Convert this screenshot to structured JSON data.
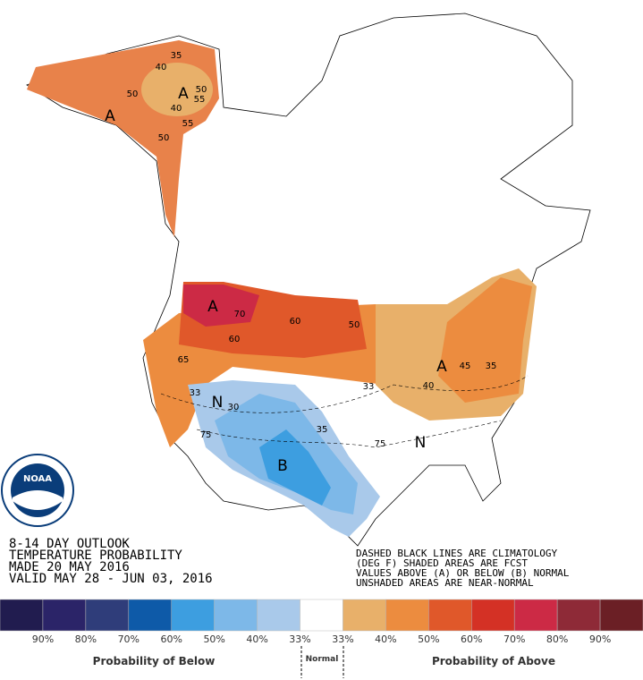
{
  "outlook": {
    "lines": [
      "8-14 DAY OUTLOOK",
      "TEMPERATURE PROBABILITY",
      "MADE  20 MAY 2016",
      "VALID  MAY 28 - JUN 03, 2016"
    ],
    "notes": [
      "DASHED BLACK LINES ARE CLIMATOLOGY",
      "(DEG F) SHADED AREAS ARE FCST",
      "VALUES ABOVE (A) OR BELOW (B) NORMAL",
      "UNSHADED AREAS ARE NEAR-NORMAL"
    ]
  },
  "map_labels": [
    "35",
    "40",
    "50",
    "A",
    "50",
    "55",
    "40",
    "A",
    "55",
    "50",
    "A",
    "70",
    "60",
    "50",
    "60",
    "65",
    "33",
    "N",
    "30",
    "75",
    "35",
    "B",
    "33",
    "75",
    "N",
    "A",
    "40",
    "45",
    "35"
  ],
  "legend": {
    "colors": [
      "#211c4f",
      "#2b2468",
      "#2f3d7a",
      "#0e5aa8",
      "#3d9ee0",
      "#7db8e8",
      "#a9c9ea",
      "#ffffff",
      "#e8b06a",
      "#ec8c3f",
      "#e0582a",
      "#d43125",
      "#cc2a45",
      "#8e2a37",
      "#6b1f25"
    ],
    "labels": [
      "90%",
      "80%",
      "70%",
      "60%",
      "50%",
      "40%",
      "33%",
      "33%",
      "40%",
      "50%",
      "60%",
      "70%",
      "80%",
      "90%"
    ],
    "below": "Probability of Below",
    "normal": "Normal",
    "above": "Probability of Above"
  },
  "logo": "NOAA"
}
